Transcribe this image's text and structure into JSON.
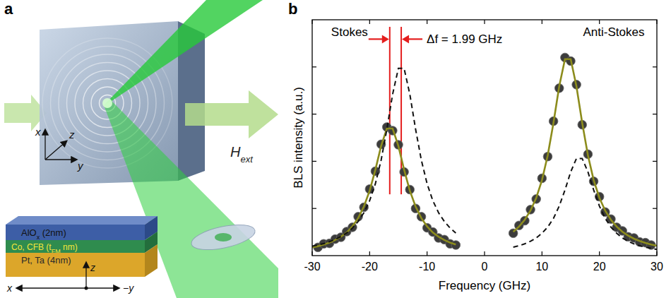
{
  "panel_a": {
    "letter": "a",
    "axes": {
      "x": "x",
      "y": "y",
      "z": "z"
    },
    "field": {
      "main": "H",
      "sub": "ext"
    },
    "stack": {
      "layers": [
        {
          "main": "AlO",
          "sub": "x",
          "rest": " (2nm)",
          "color": "#3d5ea6",
          "text_color": "#111111"
        },
        {
          "main": "Co, CFB (t",
          "sub": "FM",
          "rest": " nm)",
          "color": "#2f8c4e",
          "text_color": "#f4e63c"
        },
        {
          "main": "Pt, Ta (4nm)",
          "color": "#dca62a",
          "text_color": "#2a2a2a"
        }
      ],
      "axes": {
        "x": "x",
        "y": "−y",
        "z": "z"
      }
    }
  },
  "chart_data": {
    "type": "scatter",
    "letter": "b",
    "x_label": "Frequency (GHz)",
    "y_label": "BLS intensity (a.u.)",
    "annotations": [
      "Stokes",
      "Anti-Stokes",
      "Δf = 1.99 GHz"
    ],
    "vlines": {
      "x": [
        -16.5,
        -14.5
      ],
      "color": "#e41e1e"
    },
    "xlim": [
      -30,
      30
    ],
    "xticks": [
      -30,
      -20,
      -10,
      0,
      10,
      20,
      30
    ],
    "ylim": [
      0,
      1
    ],
    "yticks": [
      0.2,
      0.4,
      0.6,
      0.8
    ],
    "tick_labels": "x",
    "grid": false,
    "series": [
      {
        "type": "scatter",
        "marker": "circle",
        "color": "#3c3c3c",
        "x": [
          -29,
          -28,
          -27,
          -26,
          -25,
          -24,
          -23,
          -22,
          -21,
          -20,
          -19,
          -18,
          -17,
          -16,
          -15,
          -14,
          -13,
          -12,
          -11,
          -10,
          -9,
          -8,
          -7,
          -6,
          -5,
          5,
          6,
          7,
          8,
          9,
          10,
          11,
          12,
          13,
          14,
          15,
          16,
          17,
          18,
          19,
          20,
          21,
          22,
          23,
          24,
          25,
          26,
          27,
          28,
          29
        ],
        "values": [
          0.035,
          0.05,
          0.052,
          0.07,
          0.078,
          0.102,
          0.12,
          0.165,
          0.205,
          0.282,
          0.358,
          0.472,
          0.545,
          0.53,
          0.47,
          0.355,
          0.28,
          0.2,
          0.165,
          0.118,
          0.1,
          0.075,
          0.068,
          0.05,
          0.045,
          0.095,
          0.128,
          0.148,
          0.195,
          0.24,
          0.328,
          0.42,
          0.57,
          0.71,
          0.84,
          0.825,
          0.725,
          0.555,
          0.43,
          0.315,
          0.25,
          0.185,
          0.155,
          0.12,
          0.105,
          0.08,
          0.075,
          0.058,
          0.055,
          0.045
        ]
      },
      {
        "type": "line",
        "line_style": "solid",
        "color": "#8c8c1c",
        "x": [
          -30,
          -29,
          -28,
          -27,
          -26,
          -25,
          -24,
          -23,
          -22,
          -21,
          -20,
          -19,
          -18,
          -17,
          -16,
          -15,
          -14,
          -13,
          -12,
          -11,
          -10,
          -9,
          -8,
          -7,
          -6,
          -5,
          0,
          5,
          6,
          7,
          8,
          9,
          10,
          11,
          12,
          13,
          14,
          15,
          16,
          17,
          18,
          19,
          20,
          21,
          22,
          23,
          24,
          25,
          26,
          27,
          28,
          29,
          30
        ],
        "values": [
          0.035,
          0.04,
          0.047,
          0.055,
          0.066,
          0.08,
          0.098,
          0.124,
          0.159,
          0.208,
          0.275,
          0.364,
          0.465,
          0.539,
          0.539,
          0.465,
          0.364,
          0.275,
          0.208,
          0.159,
          0.124,
          0.098,
          0.08,
          0.066,
          0.055,
          0.047,
          null,
          0.101,
          0.123,
          0.152,
          0.191,
          0.245,
          0.32,
          0.425,
          0.563,
          0.718,
          0.833,
          0.833,
          0.718,
          0.563,
          0.425,
          0.32,
          0.245,
          0.191,
          0.152,
          0.123,
          0.101,
          0.085,
          0.072,
          0.062,
          0.054,
          0.047,
          0.042
        ]
      },
      {
        "type": "line",
        "line_style": "dashed",
        "color": "#111111",
        "x": [
          -30,
          -29,
          -28,
          -27,
          -26,
          -25,
          -24,
          -23,
          -22,
          -21,
          -20,
          -19,
          -18,
          -17,
          -16,
          -15,
          -14,
          -13,
          -12,
          -11,
          -10,
          -9,
          -8,
          -7,
          -6,
          -5,
          0,
          5,
          6,
          7,
          8,
          9,
          10,
          11,
          12,
          13,
          14,
          15,
          16,
          17,
          18,
          19,
          20,
          21,
          22,
          23,
          24,
          25,
          26,
          27,
          28,
          29,
          30
        ],
        "values": [
          0.04,
          0.045,
          0.051,
          0.059,
          0.069,
          0.081,
          0.096,
          0.117,
          0.145,
          0.182,
          0.233,
          0.305,
          0.405,
          0.536,
          0.684,
          0.794,
          0.794,
          0.684,
          0.536,
          0.405,
          0.305,
          0.233,
          0.182,
          0.145,
          0.117,
          0.096,
          null,
          0.036,
          0.042,
          0.05,
          0.061,
          0.075,
          0.095,
          0.121,
          0.158,
          0.21,
          0.278,
          0.355,
          0.412,
          0.412,
          0.355,
          0.278,
          0.21,
          0.158,
          0.121,
          0.095,
          0.075,
          0.061,
          0.05,
          0.042,
          0.036,
          0.031,
          0.026
        ]
      }
    ]
  }
}
